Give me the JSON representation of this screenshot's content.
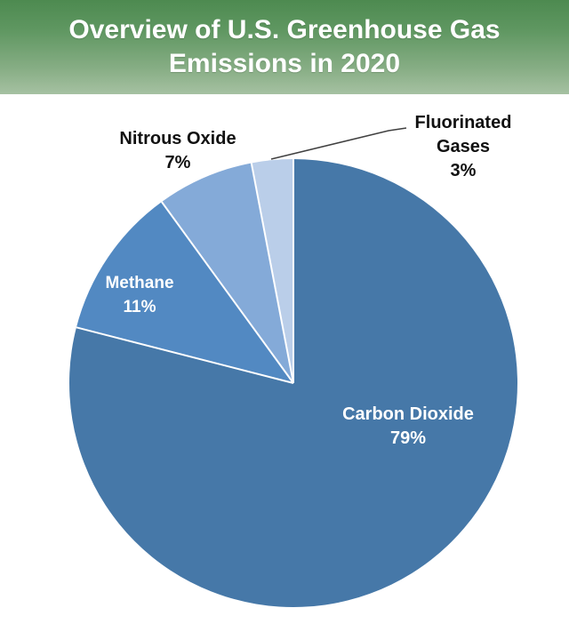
{
  "header": {
    "title_line1": "Overview of U.S. Greenhouse Gas",
    "title_line2": "Emissions in 2020",
    "gradient_top_color": "#4d8a50",
    "gradient_bottom_color": "#a6c1a2",
    "text_color": "#ffffff"
  },
  "chart_data": {
    "type": "pie",
    "title": "Overview of U.S. Greenhouse Gas Emissions in 2020",
    "start_angle_deg": 0,
    "direction": "clockwise",
    "legend_position": "none",
    "slice_divider_color": "#ffffff",
    "leader_line_color": "#404040",
    "segments": [
      {
        "label": "Carbon Dioxide",
        "value": 79,
        "pct_text": "79%",
        "color": "#4678a8",
        "label_placement": "inside",
        "label_color": "#ffffff"
      },
      {
        "label": "Methane",
        "value": 11,
        "pct_text": "11%",
        "color": "#5289c2",
        "label_placement": "inside",
        "label_color": "#ffffff"
      },
      {
        "label": "Nitrous Oxide",
        "value": 7,
        "pct_text": "7%",
        "color": "#84aad8",
        "label_placement": "outside",
        "label_color": "#111111"
      },
      {
        "label": "Fluorinated Gases",
        "value": 3,
        "pct_text": "3%",
        "color": "#bacee9",
        "label_placement": "outside-with-leader-line",
        "label_color": "#111111"
      }
    ]
  }
}
